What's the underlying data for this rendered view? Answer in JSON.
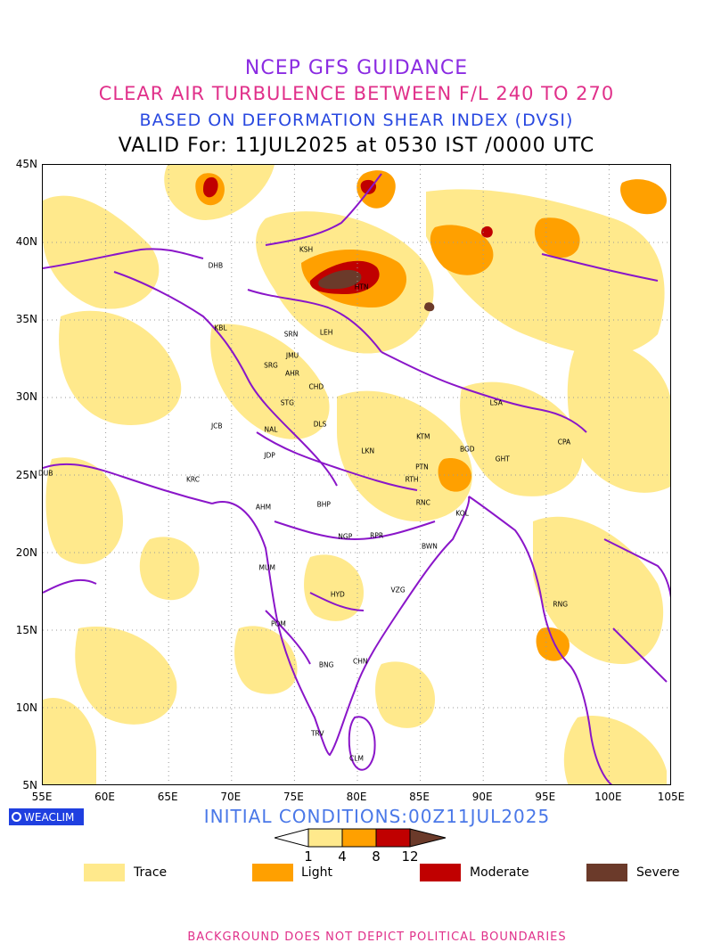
{
  "titles": {
    "line1": "NCEP GFS GUIDANCE",
    "line2": "CLEAR AIR TURBULENCE BETWEEN F/L 240 TO 270",
    "line3": "BASED ON DEFORMATION SHEAR INDEX (DVSI)",
    "line4": "VALID For: 11JUL2025 at 0530 IST /0000 UTC"
  },
  "axes": {
    "lat_labels": [
      "45N",
      "40N",
      "35N",
      "30N",
      "25N",
      "20N",
      "15N",
      "10N",
      "5N"
    ],
    "lon_labels": [
      "55E",
      "60E",
      "65E",
      "70E",
      "75E",
      "80E",
      "85E",
      "90E",
      "95E",
      "100E",
      "105E"
    ]
  },
  "logo": "WEACLIM",
  "initial_conditions": "INITIAL CONDITIONS:00Z11JUL2025",
  "colorbar": {
    "ticks": [
      "1",
      "4",
      "8",
      "12"
    ],
    "colors": [
      "#ffe98c",
      "#ffa000",
      "#c00000",
      "#6b3a2a"
    ]
  },
  "legend": [
    {
      "label": "Trace",
      "color": "#ffe98c"
    },
    {
      "label": "Light",
      "color": "#ffa000"
    },
    {
      "label": "Moderate",
      "color": "#c00000"
    },
    {
      "label": "Severe",
      "color": "#6b3a2a"
    }
  ],
  "cities": [
    {
      "label": "KSH",
      "lon": 76.0,
      "lat": 39.5
    },
    {
      "label": "DHB",
      "lon": 68.8,
      "lat": 38.5
    },
    {
      "label": "HTN",
      "lon": 80.4,
      "lat": 37.1
    },
    {
      "label": "KBL",
      "lon": 69.2,
      "lat": 34.5
    },
    {
      "label": "SRN",
      "lon": 74.8,
      "lat": 34.1
    },
    {
      "label": "LEH",
      "lon": 77.6,
      "lat": 34.2
    },
    {
      "label": "JMU",
      "lon": 74.9,
      "lat": 32.7
    },
    {
      "label": "SRG",
      "lon": 73.2,
      "lat": 32.1
    },
    {
      "label": "AHR",
      "lon": 74.9,
      "lat": 31.6
    },
    {
      "label": "CHD",
      "lon": 76.8,
      "lat": 30.7
    },
    {
      "label": "STG",
      "lon": 74.5,
      "lat": 29.7
    },
    {
      "label": "LSA",
      "lon": 91.1,
      "lat": 29.7
    },
    {
      "label": "NAL",
      "lon": 73.2,
      "lat": 28.0
    },
    {
      "label": "DLS",
      "lon": 77.1,
      "lat": 28.3
    },
    {
      "label": "JCB",
      "lon": 68.9,
      "lat": 28.2
    },
    {
      "label": "KTM",
      "lon": 85.3,
      "lat": 27.5
    },
    {
      "label": "CPA",
      "lon": 96.5,
      "lat": 27.2
    },
    {
      "label": "BGD",
      "lon": 88.8,
      "lat": 26.7
    },
    {
      "label": "GHT",
      "lon": 91.6,
      "lat": 26.1
    },
    {
      "label": "JDP",
      "lon": 73.1,
      "lat": 26.3
    },
    {
      "label": "LKN",
      "lon": 80.9,
      "lat": 26.6
    },
    {
      "label": "PTN",
      "lon": 85.2,
      "lat": 25.6
    },
    {
      "label": "DUB",
      "lon": 55.3,
      "lat": 25.2
    },
    {
      "label": "KRC",
      "lon": 67.0,
      "lat": 24.8
    },
    {
      "label": "RTH",
      "lon": 84.4,
      "lat": 24.8
    },
    {
      "label": "AHM",
      "lon": 72.6,
      "lat": 23.0
    },
    {
      "label": "BHP",
      "lon": 77.4,
      "lat": 23.2
    },
    {
      "label": "RNC",
      "lon": 85.3,
      "lat": 23.3
    },
    {
      "label": "KOL",
      "lon": 88.4,
      "lat": 22.6
    },
    {
      "label": "NGP",
      "lon": 79.1,
      "lat": 21.1
    },
    {
      "label": "RPR",
      "lon": 81.6,
      "lat": 21.2
    },
    {
      "label": "BWN",
      "lon": 85.8,
      "lat": 20.5
    },
    {
      "label": "MUM",
      "lon": 72.9,
      "lat": 19.1
    },
    {
      "label": "HYD",
      "lon": 78.5,
      "lat": 17.4
    },
    {
      "label": "VZG",
      "lon": 83.3,
      "lat": 17.7
    },
    {
      "label": "RNG",
      "lon": 96.2,
      "lat": 16.8
    },
    {
      "label": "POM",
      "lon": 73.8,
      "lat": 15.5
    },
    {
      "label": "CHN",
      "lon": 80.3,
      "lat": 13.1
    },
    {
      "label": "BNG",
      "lon": 77.6,
      "lat": 12.9
    },
    {
      "label": "TRV",
      "lon": 76.9,
      "lat": 8.5
    },
    {
      "label": "CLM",
      "lon": 80.0,
      "lat": 6.9
    }
  ],
  "disclaimer": "BACKGROUND DOES NOT DEPICT POLITICAL BOUNDARIES"
}
